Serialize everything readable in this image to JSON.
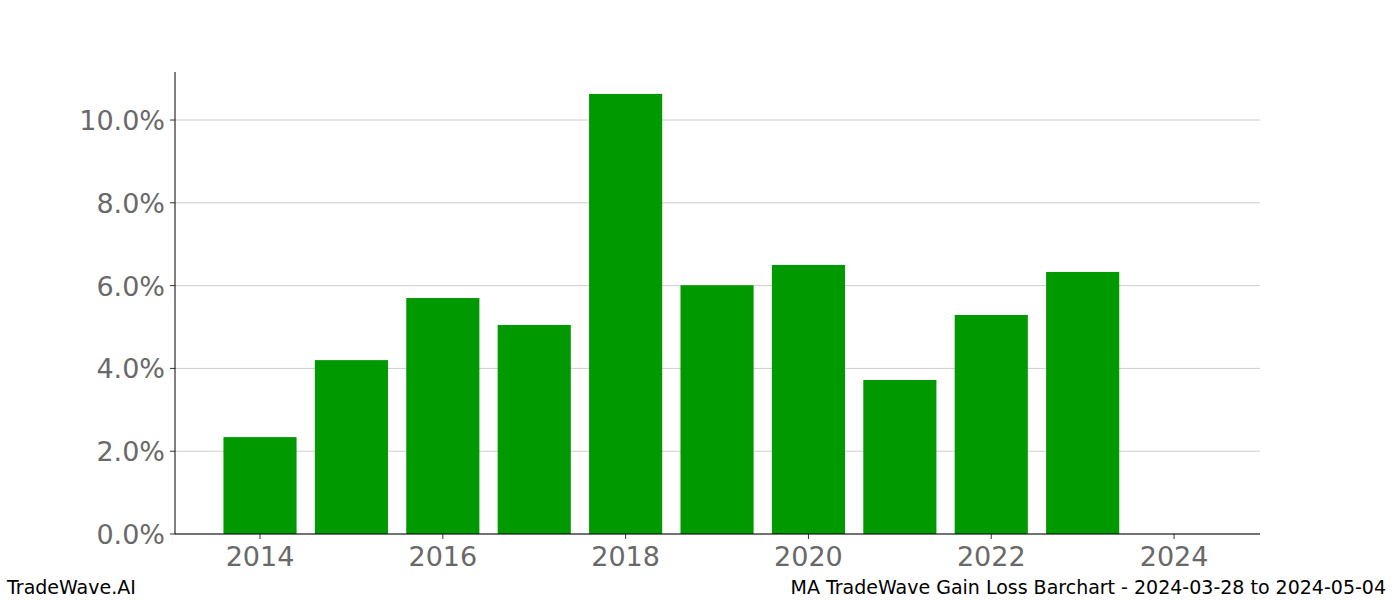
{
  "chart_data": {
    "type": "bar",
    "x": [
      2014,
      2015,
      2016,
      2017,
      2018,
      2019,
      2020,
      2021,
      2022,
      2023
    ],
    "values": [
      2.34,
      4.2,
      5.7,
      5.05,
      10.63,
      6.01,
      6.5,
      3.72,
      5.29,
      6.33
    ],
    "color": "#009900",
    "xlim": [
      2013.07,
      2024.94
    ],
    "xticks": [
      2014,
      2016,
      2018,
      2020,
      2022,
      2024
    ],
    "ylim": [
      0,
      11.16
    ],
    "yticks": [
      {
        "value": 0,
        "label": "0.0%"
      },
      {
        "value": 2,
        "label": "2.0%"
      },
      {
        "value": 4,
        "label": "4.0%"
      },
      {
        "value": 6,
        "label": "6.0%"
      },
      {
        "value": 8,
        "label": "8.0%"
      },
      {
        "value": 10,
        "label": "10.0%"
      }
    ],
    "grid": true,
    "watermark": "TradeWave.AI",
    "caption": "MA TradeWave Gain Loss Barchart - 2024-03-28 to 2024-05-04"
  }
}
